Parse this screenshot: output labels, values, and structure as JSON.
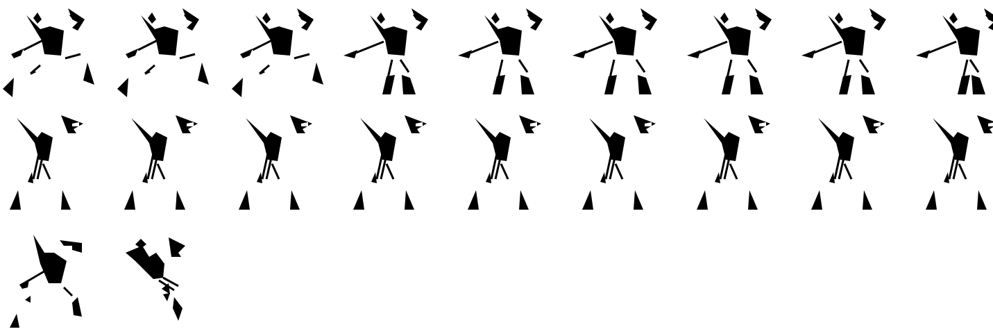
{
  "sprite_sheet": {
    "columns": 9,
    "ink_color": "#000000",
    "background_color": "#ffffff",
    "frames": [
      {
        "pose": "stand",
        "step": 0
      },
      {
        "pose": "stand",
        "step": 1
      },
      {
        "pose": "stand",
        "step": 2
      },
      {
        "pose": "walk",
        "step": 0
      },
      {
        "pose": "walk",
        "step": 1
      },
      {
        "pose": "walk",
        "step": 2
      },
      {
        "pose": "walk",
        "step": 3
      },
      {
        "pose": "walk",
        "step": 4
      },
      {
        "pose": "walk",
        "step": 5
      },
      {
        "pose": "guard",
        "step": 0
      },
      {
        "pose": "guard",
        "step": 1
      },
      {
        "pose": "guard",
        "step": 2
      },
      {
        "pose": "guard",
        "step": 3
      },
      {
        "pose": "guard",
        "step": 4
      },
      {
        "pose": "guard",
        "step": 5
      },
      {
        "pose": "guard",
        "step": 6
      },
      {
        "pose": "guard",
        "step": 7
      },
      {
        "pose": "guard",
        "step": 8
      },
      {
        "pose": "lunge",
        "step": 0
      },
      {
        "pose": "crouch",
        "step": 0
      }
    ]
  }
}
